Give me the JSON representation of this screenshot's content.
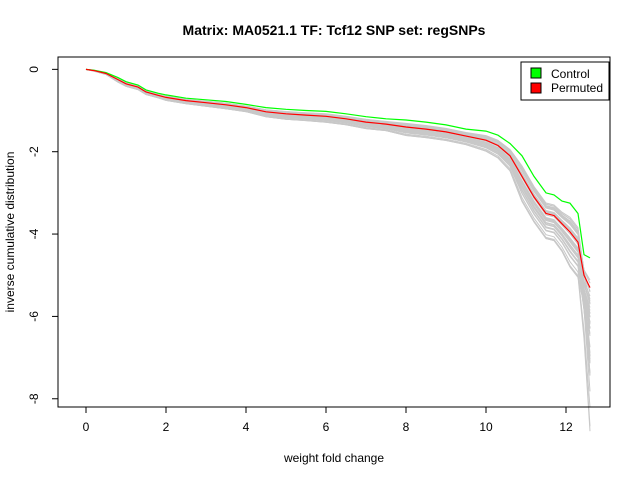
{
  "chart_data": {
    "type": "line",
    "title": "Matrix: MA0521.1 TF: Tcf12 SNP set: regSNPs",
    "xlabel": "weight fold change",
    "ylabel": "inverse cumulative distribution",
    "xlim": [
      -0.7,
      13.1
    ],
    "ylim": [
      -8.2,
      0.3
    ],
    "xticks": [
      0,
      2,
      4,
      6,
      8,
      10,
      12
    ],
    "yticks": [
      0,
      -2,
      -4,
      -6,
      -8
    ],
    "grid": false,
    "legend": {
      "position": "top-right",
      "entries": [
        {
          "label": "Control",
          "color": "#00ff00"
        },
        {
          "label": "Permuted",
          "color": "#ff0000"
        }
      ]
    },
    "series": [
      {
        "name": "Control",
        "color": "#00ff00",
        "x": [
          0,
          0.2,
          0.5,
          0.8,
          1.0,
          1.3,
          1.5,
          1.8,
          2.0,
          2.5,
          3.0,
          3.5,
          4.0,
          4.5,
          5.0,
          5.5,
          6.0,
          6.5,
          7.0,
          7.5,
          8.0,
          8.5,
          9.0,
          9.5,
          10.0,
          10.3,
          10.6,
          10.9,
          11.2,
          11.5,
          11.7,
          11.9,
          12.1,
          12.3,
          12.45,
          12.6
        ],
        "y": [
          0,
          -0.02,
          -0.08,
          -0.2,
          -0.3,
          -0.38,
          -0.5,
          -0.58,
          -0.62,
          -0.7,
          -0.74,
          -0.78,
          -0.85,
          -0.93,
          -0.97,
          -1.0,
          -1.02,
          -1.08,
          -1.15,
          -1.2,
          -1.23,
          -1.28,
          -1.35,
          -1.45,
          -1.5,
          -1.6,
          -1.8,
          -2.1,
          -2.6,
          -3.0,
          -3.05,
          -3.2,
          -3.25,
          -3.5,
          -4.5,
          -4.58
        ]
      },
      {
        "name": "Permuted",
        "color": "#ff0000",
        "x": [
          0,
          0.2,
          0.5,
          0.8,
          1.0,
          1.3,
          1.5,
          1.8,
          2.0,
          2.5,
          3.0,
          3.5,
          4.0,
          4.5,
          5.0,
          5.5,
          6.0,
          6.5,
          7.0,
          7.5,
          8.0,
          8.5,
          9.0,
          9.5,
          10.0,
          10.3,
          10.6,
          10.9,
          11.2,
          11.5,
          11.7,
          11.9,
          12.1,
          12.3,
          12.45,
          12.6
        ],
        "y": [
          0,
          -0.03,
          -0.1,
          -0.25,
          -0.35,
          -0.43,
          -0.55,
          -0.63,
          -0.68,
          -0.76,
          -0.81,
          -0.86,
          -0.93,
          -1.03,
          -1.08,
          -1.11,
          -1.14,
          -1.2,
          -1.28,
          -1.33,
          -1.4,
          -1.45,
          -1.52,
          -1.62,
          -1.72,
          -1.85,
          -2.1,
          -2.6,
          -3.1,
          -3.5,
          -3.55,
          -3.75,
          -3.95,
          -4.2,
          -5.0,
          -5.3
        ]
      }
    ]
  }
}
